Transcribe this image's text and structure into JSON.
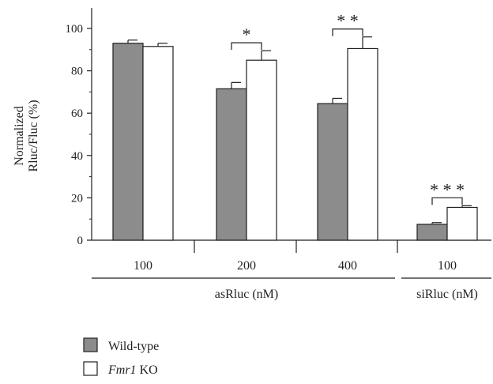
{
  "chart_data": {
    "type": "bar",
    "ylabel": "Normalized\nRluc/Fluc (%)",
    "ylim": [
      0,
      110
    ],
    "yticks": [
      0,
      20,
      40,
      60,
      80,
      100
    ],
    "grid": false,
    "categories": [
      "100",
      "200",
      "400",
      "100"
    ],
    "groups": [
      {
        "label": "asRluc (nM)",
        "categories": [
          0,
          1,
          2
        ]
      },
      {
        "label": "siRluc (nM)",
        "categories": [
          3
        ]
      }
    ],
    "series": [
      {
        "name": "Wild-type",
        "color": "#8c8c8c",
        "values": [
          93,
          71.5,
          64.5,
          7.5
        ],
        "errors": [
          1.5,
          3,
          2.5,
          0.8
        ]
      },
      {
        "name": "Fmr1 KO",
        "color": "#ffffff",
        "values": [
          91.5,
          85,
          90.5,
          15.5
        ],
        "errors": [
          1.5,
          4.5,
          5.5,
          0.8
        ]
      }
    ],
    "significance": [
      "",
      "*",
      "* *",
      "* * *"
    ],
    "legend": {
      "position": "bottom-left",
      "items": [
        {
          "label": "Wild-type",
          "italic_prefix": ""
        },
        {
          "label": " KO",
          "italic_prefix": "Fmr1"
        }
      ]
    }
  }
}
